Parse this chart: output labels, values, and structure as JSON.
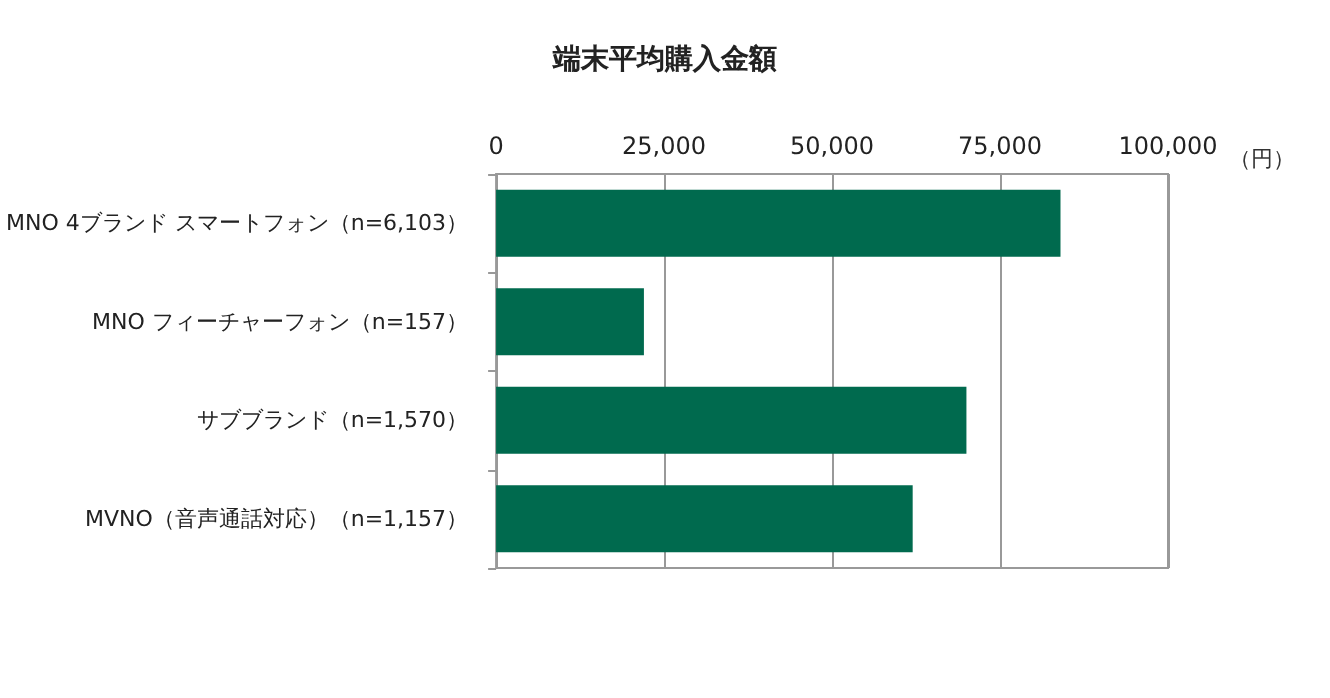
{
  "chart_data": {
    "type": "bar",
    "orientation": "horizontal",
    "title": "端末平均購入金額",
    "xlabel": "（円）",
    "categories": [
      "MNO 4ブランド スマートフォン（n=6,103）",
      "MNO フィーチャーフォン（n=157）",
      "サブブランド（n=1,570）",
      "MVNO（音声通話対応）（n=1,157）"
    ],
    "values": [
      84000,
      22000,
      70000,
      62000
    ],
    "color": "#006a4e",
    "xlim": [
      0,
      100000
    ],
    "xticks": [
      0,
      {
        "value": 25000,
        "label": "25,000"
      },
      {
        "value": 50000,
        "label": "50,000"
      },
      {
        "value": 75000,
        "label": "75,000"
      },
      {
        "value": 100000,
        "label": "100,000"
      }
    ],
    "grid": "x"
  }
}
